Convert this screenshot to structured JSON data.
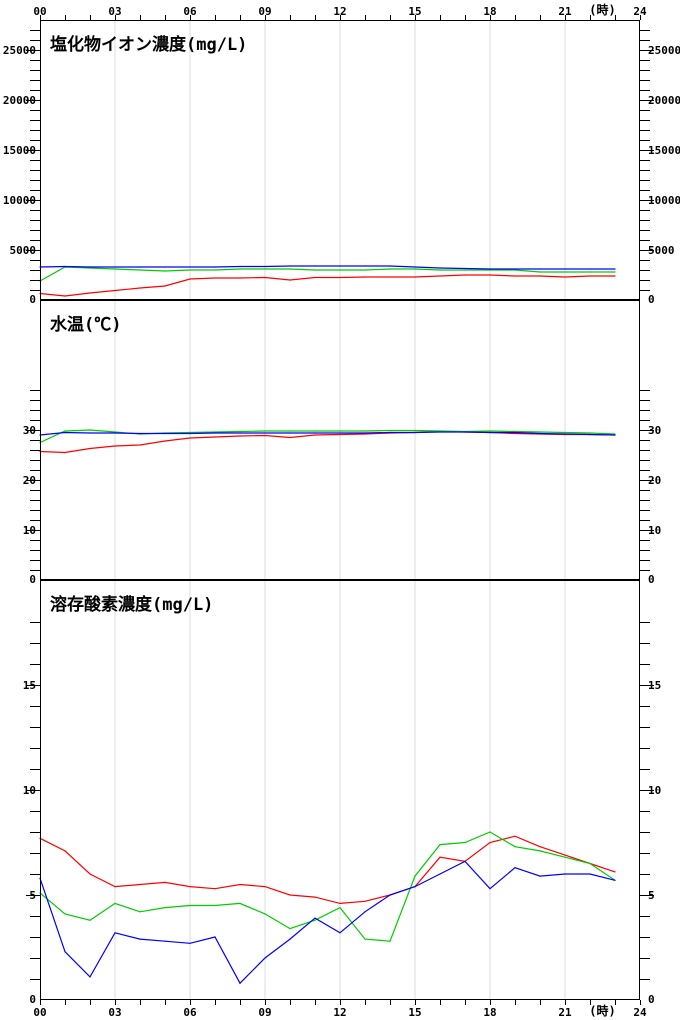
{
  "chart_data": [
    {
      "type": "line",
      "title": "塩化物イオン濃度(mg/L)",
      "ylim": [
        0,
        28000
      ],
      "ytick_labels": [
        {
          "value": 0,
          "label": "0"
        },
        {
          "value": 5000,
          "label": "5000"
        },
        {
          "value": 10000,
          "label": "10000"
        },
        {
          "value": 15000,
          "label": "15000"
        },
        {
          "value": 20000,
          "label": "20000"
        },
        {
          "value": 25000,
          "label": "25000"
        }
      ],
      "minor_tick_step": 1000,
      "series": [
        {
          "color": "#ff0000",
          "x": [
            0,
            1,
            2,
            3,
            4,
            5,
            6,
            7,
            8,
            9,
            10,
            11,
            12,
            13,
            14,
            15,
            16,
            17,
            18,
            19,
            20,
            21,
            22,
            23
          ],
          "values": [
            650,
            400,
            700,
            950,
            1200,
            1400,
            2100,
            2200,
            2200,
            2250,
            2000,
            2250,
            2250,
            2300,
            2300,
            2300,
            2400,
            2500,
            2500,
            2400,
            2400,
            2300,
            2400,
            2400
          ]
        },
        {
          "color": "#00cc00",
          "x": [
            0,
            1,
            2,
            3,
            4,
            5,
            6,
            7,
            8,
            9,
            10,
            11,
            12,
            13,
            14,
            15,
            16,
            17,
            18,
            19,
            20,
            21,
            22,
            23
          ],
          "values": [
            1900,
            3300,
            3200,
            3100,
            3000,
            2900,
            3000,
            3000,
            3100,
            3100,
            3100,
            3000,
            3000,
            3000,
            3100,
            3100,
            3000,
            3000,
            3000,
            3000,
            2800,
            2800,
            2800,
            2800
          ]
        },
        {
          "color": "#0000ff",
          "x": [
            0,
            1,
            2,
            3,
            4,
            5,
            6,
            7,
            8,
            9,
            10,
            11,
            12,
            13,
            14,
            15,
            16,
            17,
            18,
            19,
            20,
            21,
            22,
            23
          ],
          "values": [
            3300,
            3350,
            3300,
            3300,
            3300,
            3300,
            3300,
            3300,
            3350,
            3350,
            3400,
            3400,
            3400,
            3400,
            3400,
            3300,
            3200,
            3150,
            3100,
            3100,
            3100,
            3100,
            3100,
            3100
          ]
        }
      ]
    },
    {
      "type": "line",
      "title": "水温(℃)",
      "ylim": [
        0,
        56
      ],
      "ytick_labels": [
        {
          "value": 0,
          "label": "0"
        },
        {
          "value": 10,
          "label": "10"
        },
        {
          "value": 20,
          "label": "20"
        },
        {
          "value": 30,
          "label": "30"
        }
      ],
      "minor_tick_step": 2,
      "minor_tick_max": 38,
      "series": [
        {
          "color": "#ff0000",
          "x": [
            0,
            1,
            2,
            3,
            4,
            5,
            6,
            7,
            8,
            9,
            10,
            11,
            12,
            13,
            14,
            15,
            16,
            17,
            18,
            19,
            20,
            21,
            22,
            23
          ],
          "values": [
            25.7,
            25.5,
            26.3,
            26.8,
            27.0,
            27.8,
            28.4,
            28.6,
            28.8,
            28.9,
            28.5,
            29.0,
            29.1,
            29.2,
            29.4,
            29.5,
            29.7,
            29.6,
            29.5,
            29.3,
            29.2,
            29.1,
            29.1,
            29.0
          ]
        },
        {
          "color": "#00cc00",
          "x": [
            0,
            1,
            2,
            3,
            4,
            5,
            6,
            7,
            8,
            9,
            10,
            11,
            12,
            13,
            14,
            15,
            16,
            17,
            18,
            19,
            20,
            21,
            22,
            23
          ],
          "values": [
            27.5,
            29.8,
            30.0,
            29.6,
            29.2,
            29.4,
            29.5,
            29.6,
            29.7,
            29.8,
            29.8,
            29.8,
            29.8,
            29.8,
            29.9,
            29.9,
            29.8,
            29.7,
            29.8,
            29.7,
            29.6,
            29.5,
            29.4,
            29.2
          ]
        },
        {
          "color": "#0000ff",
          "x": [
            0,
            1,
            2,
            3,
            4,
            5,
            6,
            7,
            8,
            9,
            10,
            11,
            12,
            13,
            14,
            15,
            16,
            17,
            18,
            19,
            20,
            21,
            22,
            23
          ],
          "values": [
            29.0,
            29.5,
            29.4,
            29.4,
            29.3,
            29.3,
            29.3,
            29.4,
            29.4,
            29.4,
            29.4,
            29.4,
            29.4,
            29.4,
            29.5,
            29.5,
            29.6,
            29.6,
            29.5,
            29.5,
            29.3,
            29.2,
            29.1,
            29.0
          ]
        }
      ]
    },
    {
      "type": "line",
      "title": "溶存酸素濃度(mg/L)",
      "ylim": [
        0,
        20
      ],
      "ytick_labels": [
        {
          "value": 0,
          "label": "0"
        },
        {
          "value": 5,
          "label": "5"
        },
        {
          "value": 10,
          "label": "10"
        },
        {
          "value": 15,
          "label": "15"
        }
      ],
      "minor_tick_step": 1,
      "minor_tick_max": 18,
      "series": [
        {
          "color": "#ff0000",
          "x": [
            0,
            1,
            2,
            3,
            4,
            5,
            6,
            7,
            8,
            9,
            10,
            11,
            12,
            13,
            14,
            15,
            16,
            17,
            18,
            19,
            20,
            21,
            22,
            23
          ],
          "values": [
            7.7,
            7.1,
            6.0,
            5.4,
            5.5,
            5.6,
            5.4,
            5.3,
            5.5,
            5.4,
            5.0,
            4.9,
            4.6,
            4.7,
            5.0,
            5.4,
            6.8,
            6.6,
            7.5,
            7.8,
            7.3,
            6.9,
            6.5,
            6.1
          ]
        },
        {
          "color": "#00cc00",
          "x": [
            0,
            1,
            2,
            3,
            4,
            5,
            6,
            7,
            8,
            9,
            10,
            11,
            12,
            13,
            14,
            15,
            16,
            17,
            18,
            19,
            20,
            21,
            22,
            23
          ],
          "values": [
            5.1,
            4.1,
            3.8,
            4.6,
            4.2,
            4.4,
            4.5,
            4.5,
            4.6,
            4.1,
            3.4,
            3.8,
            4.4,
            2.9,
            2.8,
            5.9,
            7.4,
            7.5,
            8.0,
            7.3,
            7.1,
            6.8,
            6.5,
            5.7
          ]
        },
        {
          "color": "#0000ff",
          "x": [
            0,
            1,
            2,
            3,
            4,
            5,
            6,
            7,
            8,
            9,
            10,
            11,
            12,
            13,
            14,
            15,
            16,
            17,
            18,
            19,
            20,
            21,
            22,
            23
          ],
          "values": [
            5.8,
            2.3,
            1.1,
            3.2,
            2.9,
            2.8,
            2.7,
            3.0,
            0.8,
            2.0,
            2.9,
            3.9,
            3.2,
            4.2,
            5.0,
            5.4,
            6.0,
            6.6,
            5.3,
            6.3,
            5.9,
            6.0,
            6.0,
            5.7
          ]
        }
      ]
    }
  ],
  "x_axis": {
    "min": 0,
    "max": 24,
    "tick_labels": [
      {
        "value": 0,
        "label": "00"
      },
      {
        "value": 3,
        "label": "03"
      },
      {
        "value": 6,
        "label": "06"
      },
      {
        "value": 9,
        "label": "09"
      },
      {
        "value": 12,
        "label": "12"
      },
      {
        "value": 15,
        "label": "15"
      },
      {
        "value": 18,
        "label": "18"
      },
      {
        "value": 21,
        "label": "21"
      },
      {
        "value": 24,
        "label": "24"
      }
    ],
    "unit": "(時)"
  }
}
